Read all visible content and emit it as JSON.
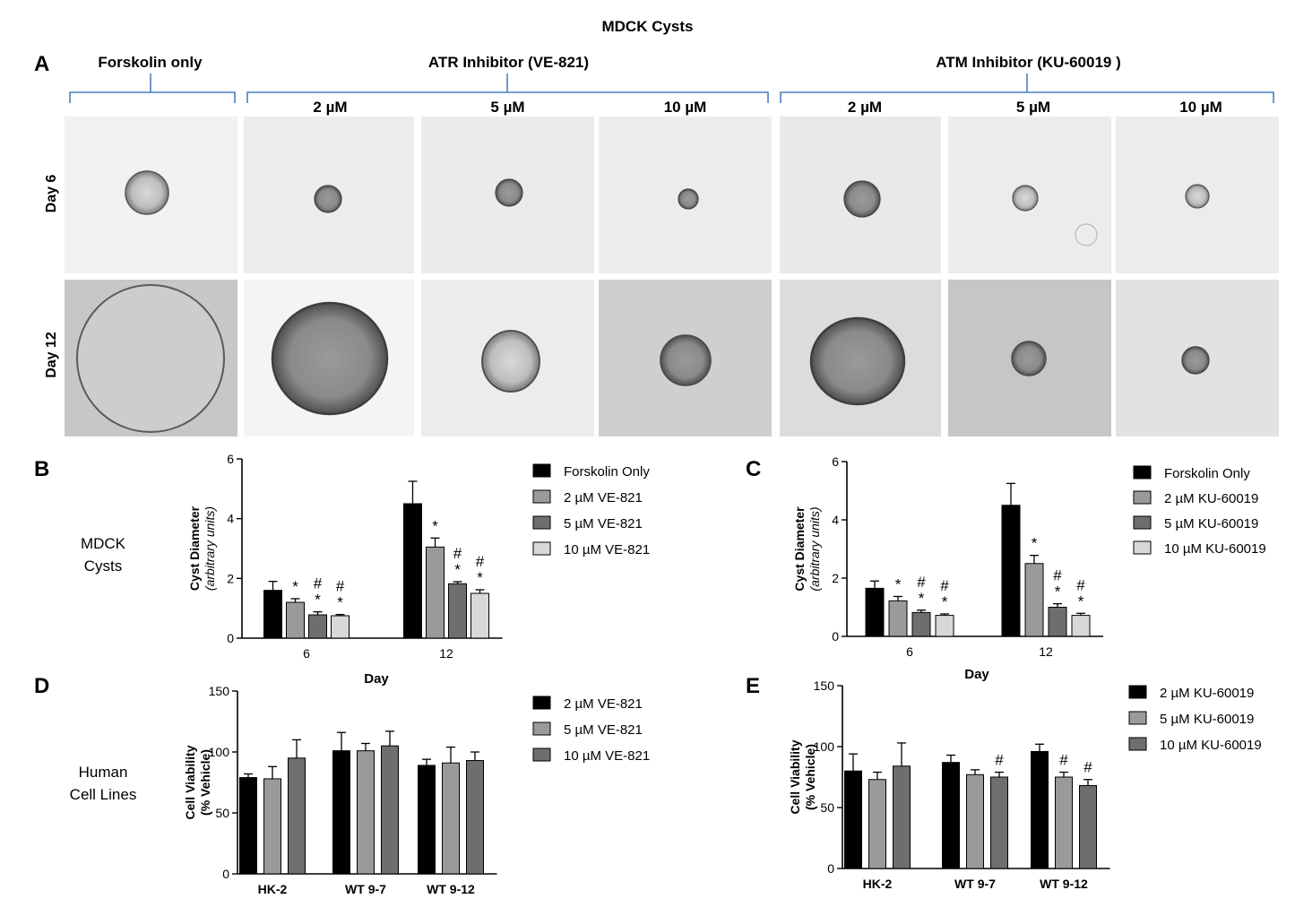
{
  "figure": {
    "title": "MDCK Cysts",
    "panel_letters": {
      "A": "A",
      "B": "B",
      "C": "C",
      "D": "D",
      "E": "E"
    }
  },
  "panel_a": {
    "groups": [
      "Forskolin only",
      "ATR Inhibitor (VE-821)",
      "ATM Inhibitor (KU-60019 )"
    ],
    "concentrations": [
      "2 µM",
      "5 µM",
      "10 µM",
      "2 µM",
      "5 µM",
      "10 µM"
    ],
    "rows": [
      "Day 6",
      "Day 12"
    ]
  },
  "side_labels": {
    "mdck": [
      "MDCK",
      "Cysts"
    ],
    "human": [
      "Human",
      "Cell Lines"
    ]
  },
  "chart_data": [
    {
      "id": "B",
      "type": "bar",
      "ylabel": "Cyst Diameter",
      "ylabel_sub": "(arbitrary units)",
      "xlabel": "Day",
      "categories": [
        "6",
        "12"
      ],
      "ylim": [
        0,
        6
      ],
      "yticks": [
        0,
        2,
        4,
        6
      ],
      "series": [
        {
          "name": "Forskolin Only",
          "values": [
            1.6,
            4.5
          ],
          "errors": [
            0.3,
            0.75
          ],
          "color": "#000000"
        },
        {
          "name": "2 µM VE-821",
          "values": [
            1.2,
            3.05
          ],
          "errors": [
            0.12,
            0.3
          ],
          "color": "#9a9a9a",
          "marks": [
            [
              "*"
            ],
            [
              "*"
            ]
          ]
        },
        {
          "name": "5 µM VE-821",
          "values": [
            0.78,
            1.82
          ],
          "errors": [
            0.1,
            0.07
          ],
          "color": "#6e6e6e",
          "marks": [
            [
              "#",
              "*"
            ],
            [
              "#",
              "*"
            ]
          ]
        },
        {
          "name": "10 µM VE-821",
          "values": [
            0.75,
            1.5
          ],
          "errors": [
            0.04,
            0.12
          ],
          "color": "#d8d8d8",
          "marks": [
            [
              "#",
              "*"
            ],
            [
              "#",
              "*"
            ]
          ]
        }
      ]
    },
    {
      "id": "C",
      "type": "bar",
      "ylabel": "Cyst Diameter",
      "ylabel_sub": "(arbitrary units)",
      "xlabel": "Day",
      "categories": [
        "6",
        "12"
      ],
      "ylim": [
        0,
        6
      ],
      "yticks": [
        0,
        2,
        4,
        6
      ],
      "series": [
        {
          "name": "Forskolin Only",
          "values": [
            1.65,
            4.5
          ],
          "errors": [
            0.25,
            0.75
          ],
          "color": "#000000"
        },
        {
          "name": "2 µM KU-60019",
          "values": [
            1.22,
            2.5
          ],
          "errors": [
            0.15,
            0.28
          ],
          "color": "#9a9a9a",
          "marks": [
            [
              "*"
            ],
            [
              "*"
            ]
          ]
        },
        {
          "name": "5 µM KU-60019",
          "values": [
            0.82,
            1.0
          ],
          "errors": [
            0.08,
            0.12
          ],
          "color": "#6e6e6e",
          "marks": [
            [
              "#",
              "*"
            ],
            [
              "#",
              "*"
            ]
          ]
        },
        {
          "name": "10 µM KU-60019",
          "values": [
            0.72,
            0.72
          ],
          "errors": [
            0.05,
            0.07
          ],
          "color": "#d8d8d8",
          "marks": [
            [
              "#",
              "*"
            ],
            [
              "#",
              "*"
            ]
          ]
        }
      ]
    },
    {
      "id": "D",
      "type": "bar",
      "ylabel": "Cell Viability",
      "ylabel_sub": "(% Vehicle)",
      "xlabel": "",
      "categories": [
        "HK-2",
        "WT 9-7",
        "WT 9-12"
      ],
      "ylim": [
        0,
        150
      ],
      "yticks": [
        0,
        50,
        100,
        150
      ],
      "series": [
        {
          "name": "2 µM VE-821",
          "values": [
            79,
            101,
            89
          ],
          "errors": [
            3,
            15,
            5
          ],
          "color": "#000000"
        },
        {
          "name": "5 µM VE-821",
          "values": [
            78,
            101,
            91
          ],
          "errors": [
            10,
            6,
            13
          ],
          "color": "#9a9a9a"
        },
        {
          "name": "10 µM VE-821",
          "values": [
            95,
            105,
            93
          ],
          "errors": [
            15,
            12,
            7
          ],
          "color": "#6e6e6e"
        }
      ]
    },
    {
      "id": "E",
      "type": "bar",
      "ylabel": "Cell Viability",
      "ylabel_sub": "(% Vehicle)",
      "xlabel": "",
      "categories": [
        "HK-2",
        "WT 9-7",
        "WT 9-12"
      ],
      "ylim": [
        0,
        150
      ],
      "yticks": [
        0,
        50,
        100,
        150
      ],
      "series": [
        {
          "name": "2 µM KU-60019",
          "values": [
            80,
            87,
            96
          ],
          "errors": [
            14,
            6,
            6
          ],
          "color": "#000000"
        },
        {
          "name": "5 µM KU-60019",
          "values": [
            73,
            77,
            75
          ],
          "errors": [
            6,
            4,
            4
          ],
          "color": "#9a9a9a",
          "marks": [
            [],
            [],
            [
              "#"
            ]
          ]
        },
        {
          "name": "10 µM KU-60019",
          "values": [
            84,
            75,
            68
          ],
          "errors": [
            19,
            4,
            5
          ],
          "color": "#6e6e6e",
          "marks": [
            [],
            [
              "#"
            ],
            [
              "#"
            ]
          ]
        }
      ]
    }
  ]
}
